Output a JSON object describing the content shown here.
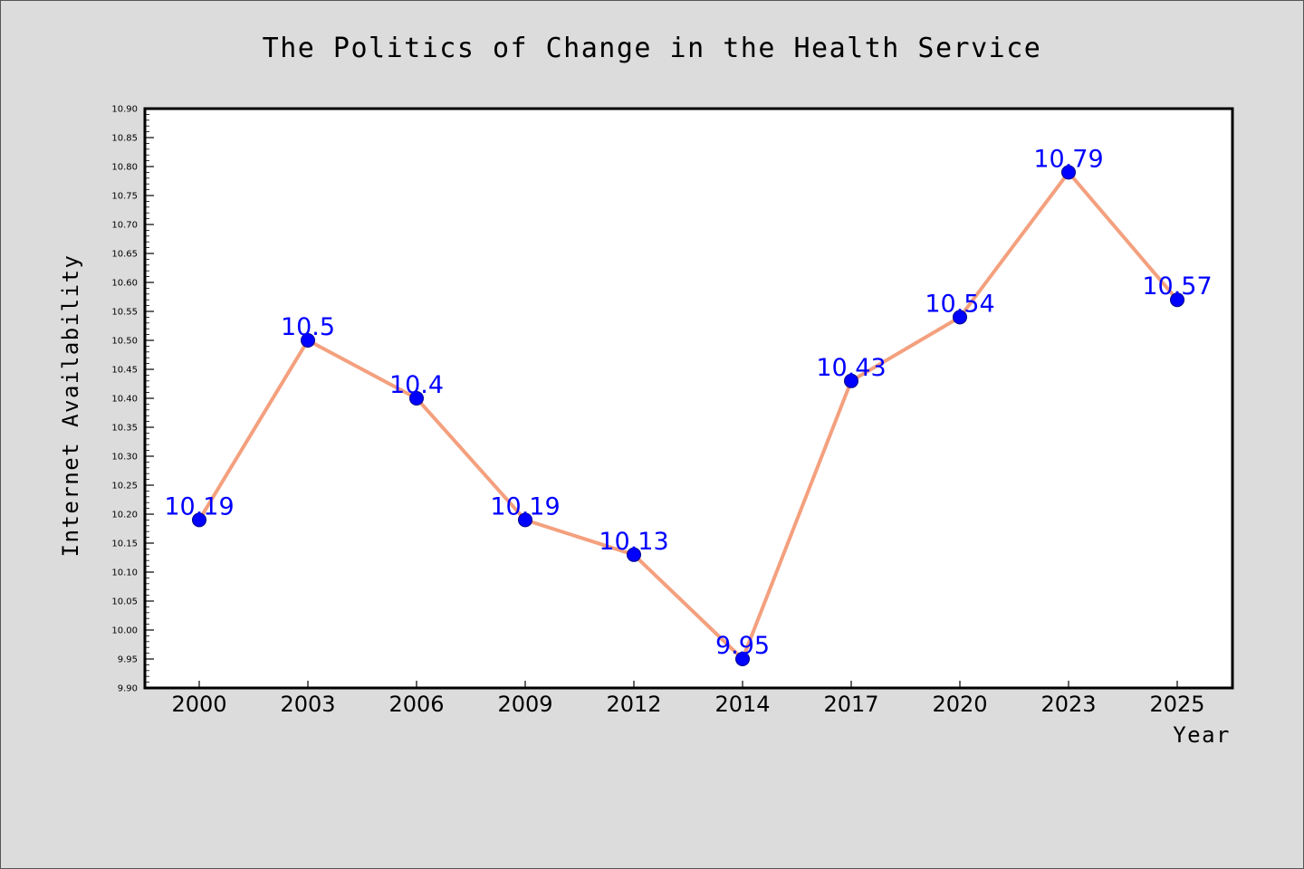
{
  "chart_data": {
    "type": "line",
    "title": "The Politics of Change in the Health Service",
    "xlabel": "Year",
    "ylabel": "Internet Availability",
    "categories": [
      "2000",
      "2003",
      "2006",
      "2009",
      "2012",
      "2014",
      "2017",
      "2020",
      "2023",
      "2025"
    ],
    "values": [
      10.19,
      10.5,
      10.4,
      10.19,
      10.13,
      9.95,
      10.43,
      10.54,
      10.79,
      10.57
    ],
    "data_labels": [
      "10.19",
      "10.5",
      "10.4",
      "10.19",
      "10.13",
      "9.95",
      "10.43",
      "10.54",
      "10.79",
      "10.57"
    ],
    "ylim": [
      9.9,
      10.9
    ],
    "yticks": [
      "9.90",
      "9.95",
      "10.00",
      "10.05",
      "10.10",
      "10.15",
      "10.20",
      "10.25",
      "10.30",
      "10.35",
      "10.40",
      "10.45",
      "10.50",
      "10.55",
      "10.60",
      "10.65",
      "10.70",
      "10.75",
      "10.80",
      "10.85",
      "10.90"
    ],
    "grid": false,
    "legend": "none",
    "colors": {
      "line": "#f4a07e",
      "marker": "#0000ff",
      "marker_edge": "#00008b",
      "data_label": "#0000ff",
      "background": "#dcdcdc",
      "plot_background": "#ffffff"
    }
  }
}
